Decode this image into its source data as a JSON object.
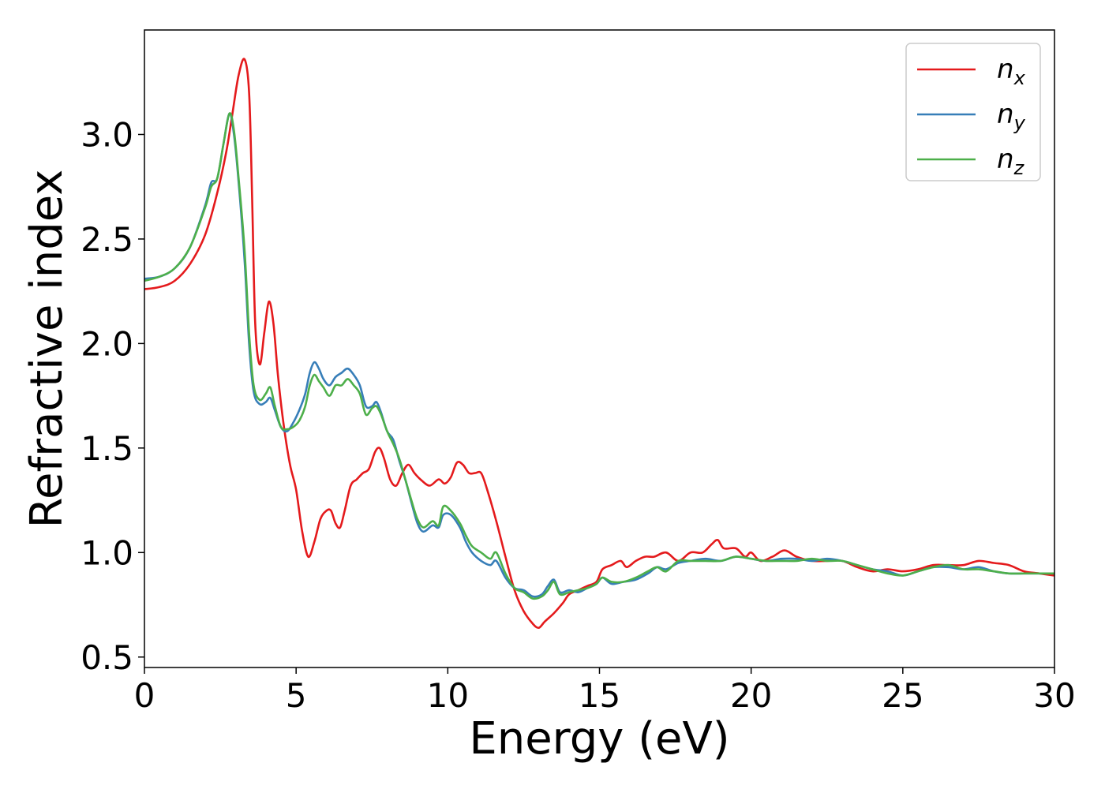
{
  "chart_data": {
    "type": "line",
    "xlabel": "Energy (eV)",
    "ylabel": "Refractive index",
    "xlim": [
      0,
      30
    ],
    "ylim": [
      0.45,
      3.5
    ],
    "x_ticks": [
      0,
      5,
      10,
      15,
      20,
      25,
      30
    ],
    "x_tick_labels": [
      "0",
      "5",
      "10",
      "15",
      "20",
      "25",
      "30"
    ],
    "y_ticks": [
      0.5,
      1.0,
      1.5,
      2.0,
      2.5,
      3.0
    ],
    "y_tick_labels": [
      "0.5",
      "1.0",
      "1.5",
      "2.0",
      "2.5",
      "3.0"
    ],
    "grid": false,
    "legend_position": "top-right",
    "series": [
      {
        "name": "n",
        "subscript": "x",
        "color": "#e41a1c",
        "points": [
          [
            0,
            2.26
          ],
          [
            0.5,
            2.27
          ],
          [
            1.0,
            2.3
          ],
          [
            1.5,
            2.38
          ],
          [
            2.0,
            2.52
          ],
          [
            2.4,
            2.72
          ],
          [
            2.7,
            2.92
          ],
          [
            2.9,
            3.1
          ],
          [
            3.1,
            3.28
          ],
          [
            3.3,
            3.36
          ],
          [
            3.45,
            3.2
          ],
          [
            3.55,
            2.7
          ],
          [
            3.65,
            2.1
          ],
          [
            3.8,
            1.9
          ],
          [
            3.95,
            2.05
          ],
          [
            4.1,
            2.2
          ],
          [
            4.25,
            2.1
          ],
          [
            4.4,
            1.85
          ],
          [
            4.6,
            1.6
          ],
          [
            4.8,
            1.42
          ],
          [
            5.0,
            1.3
          ],
          [
            5.2,
            1.1
          ],
          [
            5.4,
            0.98
          ],
          [
            5.6,
            1.05
          ],
          [
            5.8,
            1.16
          ],
          [
            6.0,
            1.2
          ],
          [
            6.15,
            1.2
          ],
          [
            6.3,
            1.14
          ],
          [
            6.45,
            1.12
          ],
          [
            6.6,
            1.2
          ],
          [
            6.8,
            1.32
          ],
          [
            7.0,
            1.35
          ],
          [
            7.2,
            1.38
          ],
          [
            7.4,
            1.4
          ],
          [
            7.6,
            1.48
          ],
          [
            7.75,
            1.5
          ],
          [
            7.9,
            1.45
          ],
          [
            8.1,
            1.35
          ],
          [
            8.3,
            1.32
          ],
          [
            8.5,
            1.38
          ],
          [
            8.7,
            1.42
          ],
          [
            8.9,
            1.38
          ],
          [
            9.1,
            1.35
          ],
          [
            9.4,
            1.32
          ],
          [
            9.7,
            1.35
          ],
          [
            9.9,
            1.33
          ],
          [
            10.1,
            1.36
          ],
          [
            10.3,
            1.43
          ],
          [
            10.5,
            1.42
          ],
          [
            10.7,
            1.38
          ],
          [
            10.9,
            1.38
          ],
          [
            11.1,
            1.38
          ],
          [
            11.3,
            1.3
          ],
          [
            11.6,
            1.15
          ],
          [
            11.9,
            0.98
          ],
          [
            12.2,
            0.82
          ],
          [
            12.5,
            0.72
          ],
          [
            12.8,
            0.66
          ],
          [
            13.0,
            0.64
          ],
          [
            13.2,
            0.67
          ],
          [
            13.5,
            0.71
          ],
          [
            13.8,
            0.76
          ],
          [
            14.0,
            0.8
          ],
          [
            14.3,
            0.82
          ],
          [
            14.6,
            0.84
          ],
          [
            14.9,
            0.86
          ],
          [
            15.1,
            0.92
          ],
          [
            15.4,
            0.94
          ],
          [
            15.7,
            0.96
          ],
          [
            15.9,
            0.93
          ],
          [
            16.2,
            0.96
          ],
          [
            16.5,
            0.98
          ],
          [
            16.8,
            0.98
          ],
          [
            17.2,
            1.0
          ],
          [
            17.6,
            0.96
          ],
          [
            18.0,
            1.0
          ],
          [
            18.4,
            1.0
          ],
          [
            18.7,
            1.04
          ],
          [
            18.9,
            1.06
          ],
          [
            19.1,
            1.02
          ],
          [
            19.5,
            1.02
          ],
          [
            19.8,
            0.98
          ],
          [
            20.0,
            1.0
          ],
          [
            20.3,
            0.96
          ],
          [
            20.7,
            0.98
          ],
          [
            21.1,
            1.01
          ],
          [
            21.5,
            0.98
          ],
          [
            22.0,
            0.96
          ],
          [
            22.5,
            0.96
          ],
          [
            23.0,
            0.96
          ],
          [
            23.5,
            0.93
          ],
          [
            24.0,
            0.91
          ],
          [
            24.5,
            0.92
          ],
          [
            25.0,
            0.91
          ],
          [
            25.5,
            0.92
          ],
          [
            26.0,
            0.94
          ],
          [
            26.5,
            0.94
          ],
          [
            27.0,
            0.94
          ],
          [
            27.5,
            0.96
          ],
          [
            28.0,
            0.95
          ],
          [
            28.5,
            0.94
          ],
          [
            29.0,
            0.91
          ],
          [
            29.5,
            0.9
          ],
          [
            30.0,
            0.89
          ]
        ]
      },
      {
        "name": "n",
        "subscript": "y",
        "color": "#377eb8",
        "points": [
          [
            0,
            2.31
          ],
          [
            0.5,
            2.32
          ],
          [
            1.0,
            2.36
          ],
          [
            1.5,
            2.46
          ],
          [
            2.0,
            2.66
          ],
          [
            2.2,
            2.77
          ],
          [
            2.4,
            2.79
          ],
          [
            2.6,
            2.95
          ],
          [
            2.8,
            3.1
          ],
          [
            2.95,
            3.0
          ],
          [
            3.1,
            2.78
          ],
          [
            3.3,
            2.4
          ],
          [
            3.45,
            2.0
          ],
          [
            3.6,
            1.77
          ],
          [
            3.8,
            1.71
          ],
          [
            4.0,
            1.72
          ],
          [
            4.15,
            1.74
          ],
          [
            4.3,
            1.68
          ],
          [
            4.5,
            1.6
          ],
          [
            4.7,
            1.58
          ],
          [
            4.9,
            1.62
          ],
          [
            5.1,
            1.68
          ],
          [
            5.3,
            1.76
          ],
          [
            5.45,
            1.86
          ],
          [
            5.6,
            1.91
          ],
          [
            5.75,
            1.88
          ],
          [
            5.9,
            1.83
          ],
          [
            6.1,
            1.8
          ],
          [
            6.3,
            1.84
          ],
          [
            6.5,
            1.86
          ],
          [
            6.7,
            1.88
          ],
          [
            6.9,
            1.85
          ],
          [
            7.1,
            1.8
          ],
          [
            7.3,
            1.7
          ],
          [
            7.5,
            1.7
          ],
          [
            7.65,
            1.72
          ],
          [
            7.8,
            1.67
          ],
          [
            8.0,
            1.58
          ],
          [
            8.2,
            1.54
          ],
          [
            8.4,
            1.44
          ],
          [
            8.6,
            1.35
          ],
          [
            8.8,
            1.24
          ],
          [
            9.0,
            1.14
          ],
          [
            9.2,
            1.1
          ],
          [
            9.5,
            1.13
          ],
          [
            9.7,
            1.12
          ],
          [
            9.85,
            1.18
          ],
          [
            10.1,
            1.18
          ],
          [
            10.4,
            1.12
          ],
          [
            10.6,
            1.05
          ],
          [
            10.8,
            1.0
          ],
          [
            11.1,
            0.96
          ],
          [
            11.4,
            0.94
          ],
          [
            11.6,
            0.96
          ],
          [
            11.9,
            0.88
          ],
          [
            12.2,
            0.83
          ],
          [
            12.5,
            0.82
          ],
          [
            12.8,
            0.79
          ],
          [
            13.1,
            0.8
          ],
          [
            13.3,
            0.84
          ],
          [
            13.5,
            0.87
          ],
          [
            13.7,
            0.81
          ],
          [
            14.0,
            0.82
          ],
          [
            14.3,
            0.81
          ],
          [
            14.6,
            0.83
          ],
          [
            14.9,
            0.85
          ],
          [
            15.1,
            0.88
          ],
          [
            15.4,
            0.85
          ],
          [
            15.8,
            0.86
          ],
          [
            16.2,
            0.87
          ],
          [
            16.6,
            0.9
          ],
          [
            16.9,
            0.93
          ],
          [
            17.2,
            0.92
          ],
          [
            17.6,
            0.95
          ],
          [
            18.0,
            0.96
          ],
          [
            18.5,
            0.97
          ],
          [
            19.0,
            0.96
          ],
          [
            19.5,
            0.98
          ],
          [
            20.0,
            0.97
          ],
          [
            20.5,
            0.96
          ],
          [
            21.0,
            0.97
          ],
          [
            21.5,
            0.97
          ],
          [
            22.0,
            0.96
          ],
          [
            22.5,
            0.97
          ],
          [
            23.0,
            0.96
          ],
          [
            23.5,
            0.94
          ],
          [
            24.0,
            0.92
          ],
          [
            24.5,
            0.91
          ],
          [
            25.0,
            0.89
          ],
          [
            25.5,
            0.91
          ],
          [
            26.0,
            0.93
          ],
          [
            26.5,
            0.93
          ],
          [
            27.0,
            0.92
          ],
          [
            27.5,
            0.93
          ],
          [
            28.0,
            0.91
          ],
          [
            28.5,
            0.9
          ],
          [
            29.0,
            0.9
          ],
          [
            29.5,
            0.9
          ],
          [
            30.0,
            0.9
          ]
        ]
      },
      {
        "name": "n",
        "subscript": "z",
        "color": "#4daf4a",
        "points": [
          [
            0,
            2.3
          ],
          [
            0.5,
            2.32
          ],
          [
            1.0,
            2.36
          ],
          [
            1.5,
            2.46
          ],
          [
            2.0,
            2.65
          ],
          [
            2.2,
            2.75
          ],
          [
            2.4,
            2.79
          ],
          [
            2.6,
            2.95
          ],
          [
            2.8,
            3.1
          ],
          [
            2.95,
            3.02
          ],
          [
            3.1,
            2.8
          ],
          [
            3.3,
            2.45
          ],
          [
            3.45,
            2.05
          ],
          [
            3.6,
            1.8
          ],
          [
            3.8,
            1.73
          ],
          [
            4.0,
            1.76
          ],
          [
            4.15,
            1.79
          ],
          [
            4.3,
            1.7
          ],
          [
            4.5,
            1.6
          ],
          [
            4.7,
            1.59
          ],
          [
            4.9,
            1.6
          ],
          [
            5.1,
            1.63
          ],
          [
            5.3,
            1.7
          ],
          [
            5.45,
            1.8
          ],
          [
            5.6,
            1.85
          ],
          [
            5.75,
            1.82
          ],
          [
            5.9,
            1.79
          ],
          [
            6.1,
            1.75
          ],
          [
            6.3,
            1.8
          ],
          [
            6.5,
            1.8
          ],
          [
            6.7,
            1.83
          ],
          [
            6.9,
            1.8
          ],
          [
            7.1,
            1.76
          ],
          [
            7.3,
            1.66
          ],
          [
            7.5,
            1.69
          ],
          [
            7.65,
            1.7
          ],
          [
            7.8,
            1.66
          ],
          [
            8.0,
            1.58
          ],
          [
            8.2,
            1.52
          ],
          [
            8.4,
            1.45
          ],
          [
            8.6,
            1.35
          ],
          [
            8.8,
            1.25
          ],
          [
            9.0,
            1.16
          ],
          [
            9.2,
            1.12
          ],
          [
            9.5,
            1.15
          ],
          [
            9.7,
            1.13
          ],
          [
            9.85,
            1.22
          ],
          [
            10.1,
            1.2
          ],
          [
            10.4,
            1.14
          ],
          [
            10.6,
            1.08
          ],
          [
            10.8,
            1.03
          ],
          [
            11.1,
            1.0
          ],
          [
            11.4,
            0.97
          ],
          [
            11.6,
            1.0
          ],
          [
            11.9,
            0.9
          ],
          [
            12.2,
            0.83
          ],
          [
            12.5,
            0.81
          ],
          [
            12.8,
            0.78
          ],
          [
            13.1,
            0.79
          ],
          [
            13.3,
            0.82
          ],
          [
            13.5,
            0.86
          ],
          [
            13.7,
            0.8
          ],
          [
            14.0,
            0.81
          ],
          [
            14.3,
            0.82
          ],
          [
            14.6,
            0.83
          ],
          [
            14.9,
            0.85
          ],
          [
            15.1,
            0.88
          ],
          [
            15.4,
            0.86
          ],
          [
            15.8,
            0.86
          ],
          [
            16.2,
            0.88
          ],
          [
            16.6,
            0.91
          ],
          [
            16.9,
            0.93
          ],
          [
            17.2,
            0.91
          ],
          [
            17.6,
            0.96
          ],
          [
            18.0,
            0.96
          ],
          [
            18.5,
            0.96
          ],
          [
            19.0,
            0.96
          ],
          [
            19.5,
            0.98
          ],
          [
            20.0,
            0.97
          ],
          [
            20.5,
            0.96
          ],
          [
            21.0,
            0.96
          ],
          [
            21.5,
            0.96
          ],
          [
            22.0,
            0.97
          ],
          [
            22.5,
            0.96
          ],
          [
            23.0,
            0.96
          ],
          [
            23.5,
            0.94
          ],
          [
            24.0,
            0.92
          ],
          [
            24.5,
            0.9
          ],
          [
            25.0,
            0.89
          ],
          [
            25.5,
            0.91
          ],
          [
            26.0,
            0.93
          ],
          [
            26.5,
            0.94
          ],
          [
            27.0,
            0.92
          ],
          [
            27.5,
            0.92
          ],
          [
            28.0,
            0.91
          ],
          [
            28.5,
            0.9
          ],
          [
            29.0,
            0.9
          ],
          [
            29.5,
            0.9
          ],
          [
            30.0,
            0.9
          ]
        ]
      }
    ]
  }
}
